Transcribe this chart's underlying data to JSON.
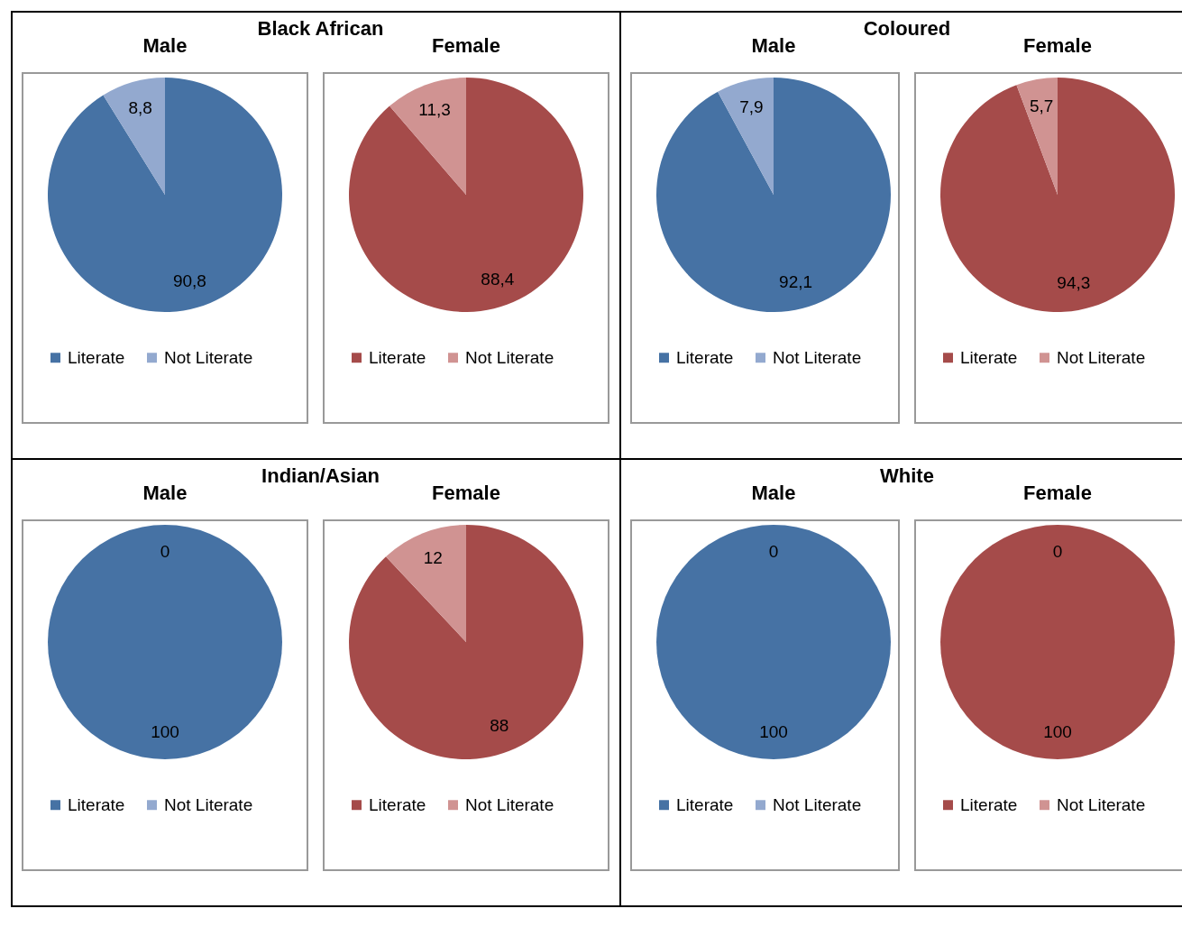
{
  "chart_data": [
    {
      "type": "pie",
      "title": "Male",
      "annotations": [
        "Black African"
      ],
      "categories": [
        "Literate",
        "Not Literate"
      ],
      "values": [
        90.8,
        8.8
      ],
      "value_labels": [
        "90,8",
        "8,8"
      ],
      "colors": [
        "#4672a4",
        "#93a9cf"
      ],
      "legend": "bottom"
    },
    {
      "type": "pie",
      "title": "Female",
      "categories": [
        "Literate",
        "Not Literate"
      ],
      "values": [
        88.4,
        11.3
      ],
      "value_labels": [
        "88,4",
        "11,3"
      ],
      "colors": [
        "#a54b4a",
        "#d09392"
      ],
      "legend": "bottom"
    },
    {
      "type": "pie",
      "title": "Male",
      "annotations": [
        "Coloured"
      ],
      "categories": [
        "Literate",
        "Not Literate"
      ],
      "values": [
        92.1,
        7.9
      ],
      "value_labels": [
        "92,1",
        "7,9"
      ],
      "colors": [
        "#4672a4",
        "#93a9cf"
      ],
      "legend": "bottom"
    },
    {
      "type": "pie",
      "title": "Female",
      "categories": [
        "Literate",
        "Not Literate"
      ],
      "values": [
        94.3,
        5.7
      ],
      "value_labels": [
        "94,3",
        "5,7"
      ],
      "colors": [
        "#a54b4a",
        "#d09392"
      ],
      "legend": "bottom"
    },
    {
      "type": "pie",
      "title": "Male",
      "annotations": [
        "Indian/Asian"
      ],
      "categories": [
        "Literate",
        "Not Literate"
      ],
      "values": [
        100,
        0
      ],
      "value_labels": [
        "100",
        "0"
      ],
      "colors": [
        "#4672a4",
        "#93a9cf"
      ],
      "legend": "bottom"
    },
    {
      "type": "pie",
      "title": "Female",
      "categories": [
        "Literate",
        "Not Literate"
      ],
      "values": [
        88,
        12
      ],
      "value_labels": [
        "88",
        "12"
      ],
      "colors": [
        "#a54b4a",
        "#d09392"
      ],
      "legend": "bottom"
    },
    {
      "type": "pie",
      "title": "Male",
      "annotations": [
        "White"
      ],
      "categories": [
        "Literate",
        "Not Literate"
      ],
      "values": [
        100,
        0
      ],
      "value_labels": [
        "100",
        "0"
      ],
      "colors": [
        "#4672a4",
        "#93a9cf"
      ],
      "legend": "bottom"
    },
    {
      "type": "pie",
      "title": "Female",
      "categories": [
        "Literate",
        "Not Literate"
      ],
      "values": [
        100,
        0
      ],
      "value_labels": [
        "100",
        "0"
      ],
      "colors": [
        "#a54b4a",
        "#d09392"
      ],
      "legend": "bottom"
    }
  ]
}
